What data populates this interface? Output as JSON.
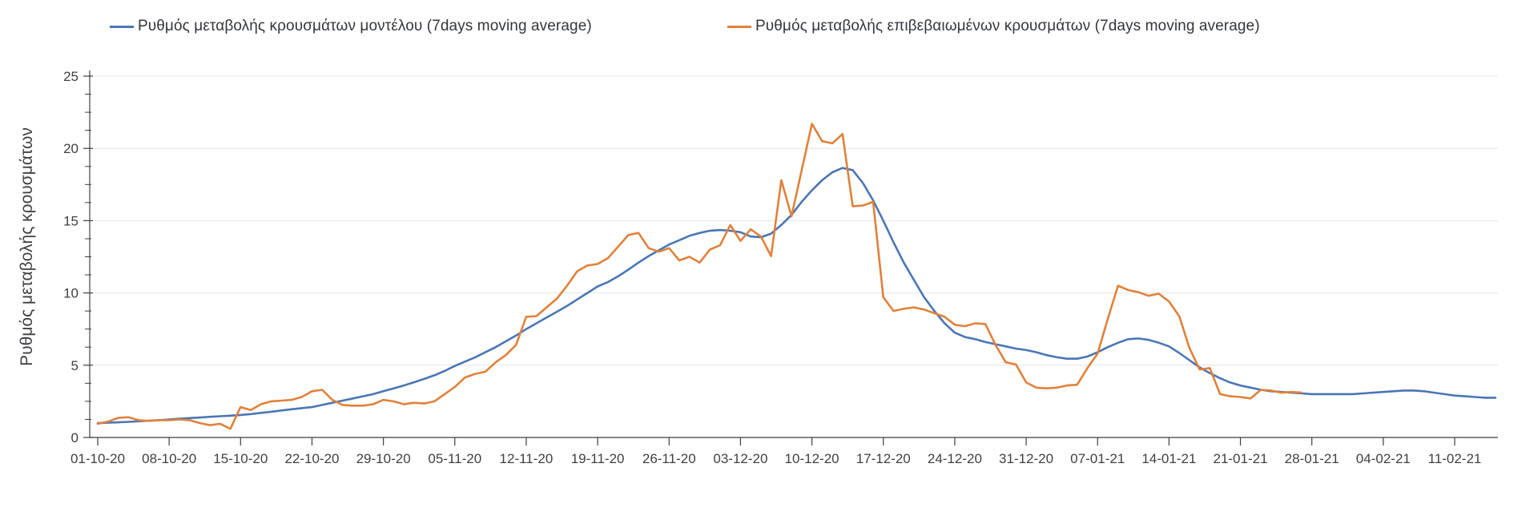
{
  "legend": [
    {
      "id": "model",
      "label": "Ρυθμός μεταβολής κρουσμάτων μοντέλου (7days moving average)",
      "color": "#4a76b5"
    },
    {
      "id": "confirmed",
      "label": "Ρυθμός μεταβολής επιβεβαιωμένων κρουσμάτων (7days moving average)",
      "color": "#e0813a"
    }
  ],
  "chart_data": {
    "type": "line",
    "title": "",
    "xlabel": "",
    "ylabel": "Ρυθμός μεταβολής κρουσμάτων",
    "ylim": [
      0,
      25
    ],
    "y_ticks": [
      0,
      5,
      10,
      15,
      20,
      25
    ],
    "y_minor_tick_step": 1.25,
    "grid": "horizontal-only",
    "legend_position": "top",
    "x_tick_interval_days": 7,
    "x_tick_labels": [
      "01-10-20",
      "08-10-20",
      "15-10-20",
      "22-10-20",
      "29-10-20",
      "05-11-20",
      "12-11-20",
      "19-11-20",
      "26-11-20",
      "03-12-20",
      "10-12-20",
      "17-12-20",
      "24-12-20",
      "31-12-20",
      "07-01-21",
      "14-01-21",
      "21-01-21",
      "28-01-21",
      "04-02-21",
      "11-02-21"
    ],
    "series": [
      {
        "id": "model",
        "name": "Ρυθμός μεταβολής κρουσμάτων μοντέλου (7days moving average)",
        "color": "#4a76b5",
        "start_day": 0,
        "values": [
          1.0,
          1.02,
          1.05,
          1.08,
          1.12,
          1.16,
          1.2,
          1.25,
          1.3,
          1.34,
          1.38,
          1.43,
          1.47,
          1.51,
          1.56,
          1.62,
          1.7,
          1.78,
          1.87,
          1.95,
          2.03,
          2.1,
          2.25,
          2.4,
          2.55,
          2.7,
          2.85,
          3.0,
          3.2,
          3.4,
          3.6,
          3.82,
          4.05,
          4.3,
          4.6,
          4.95,
          5.25,
          5.55,
          5.9,
          6.25,
          6.65,
          7.05,
          7.5,
          7.9,
          8.3,
          8.7,
          9.1,
          9.55,
          10.0,
          10.45,
          10.75,
          11.15,
          11.6,
          12.1,
          12.55,
          12.95,
          13.35,
          13.65,
          13.95,
          14.15,
          14.3,
          14.35,
          14.3,
          14.2,
          13.9,
          13.85,
          14.1,
          14.7,
          15.4,
          16.3,
          17.1,
          17.8,
          18.35,
          18.65,
          18.5,
          17.6,
          16.4,
          15.0,
          13.5,
          12.1,
          10.9,
          9.7,
          8.75,
          7.9,
          7.25,
          6.95,
          6.8,
          6.6,
          6.45,
          6.3,
          6.15,
          6.05,
          5.9,
          5.7,
          5.55,
          5.45,
          5.45,
          5.6,
          5.9,
          6.25,
          6.55,
          6.8,
          6.85,
          6.75,
          6.55,
          6.3,
          5.85,
          5.35,
          4.85,
          4.45,
          4.1,
          3.8,
          3.6,
          3.45,
          3.3,
          3.2,
          3.15,
          3.1,
          3.05,
          3.0,
          3.0,
          3.0,
          3.0,
          3.0,
          3.05,
          3.1,
          3.15,
          3.2,
          3.25,
          3.25,
          3.2,
          3.1,
          3.0,
          2.9,
          2.85,
          2.8,
          2.75,
          2.75
        ]
      },
      {
        "id": "confirmed",
        "name": "Ρυθμός μεταβολής επιβεβαιωμένων κρουσμάτων (7days moving average)",
        "color": "#e0813a",
        "start_day": 0,
        "values": [
          0.95,
          1.1,
          1.35,
          1.4,
          1.2,
          1.15,
          1.2,
          1.2,
          1.25,
          1.2,
          1.0,
          0.85,
          0.95,
          0.6,
          2.1,
          1.9,
          2.3,
          2.5,
          2.55,
          2.6,
          2.8,
          3.2,
          3.3,
          2.6,
          2.25,
          2.2,
          2.2,
          2.3,
          2.6,
          2.5,
          2.3,
          2.4,
          2.35,
          2.5,
          3.0,
          3.5,
          4.15,
          4.4,
          4.55,
          5.2,
          5.7,
          6.4,
          8.35,
          8.4,
          9.0,
          9.6,
          10.5,
          11.5,
          11.9,
          12.0,
          12.4,
          13.2,
          14.0,
          14.15,
          13.1,
          12.85,
          13.1,
          12.25,
          12.5,
          12.1,
          13.0,
          13.3,
          14.7,
          13.6,
          14.4,
          13.9,
          12.55,
          17.8,
          15.3,
          18.5,
          21.7,
          20.5,
          20.35,
          21.0,
          16.0,
          16.05,
          16.3,
          9.7,
          8.75,
          8.9,
          9.0,
          8.85,
          8.6,
          8.35,
          7.8,
          7.7,
          7.9,
          7.85,
          6.4,
          5.2,
          5.05,
          3.8,
          3.45,
          3.4,
          3.45,
          3.6,
          3.65,
          4.8,
          5.8,
          8.2,
          10.5,
          10.2,
          10.05,
          9.8,
          9.95,
          9.4,
          8.4,
          6.2,
          4.7,
          4.8,
          3.0,
          2.85,
          2.8,
          2.7,
          3.3,
          3.25,
          3.1,
          3.15,
          3.1
        ]
      }
    ]
  }
}
